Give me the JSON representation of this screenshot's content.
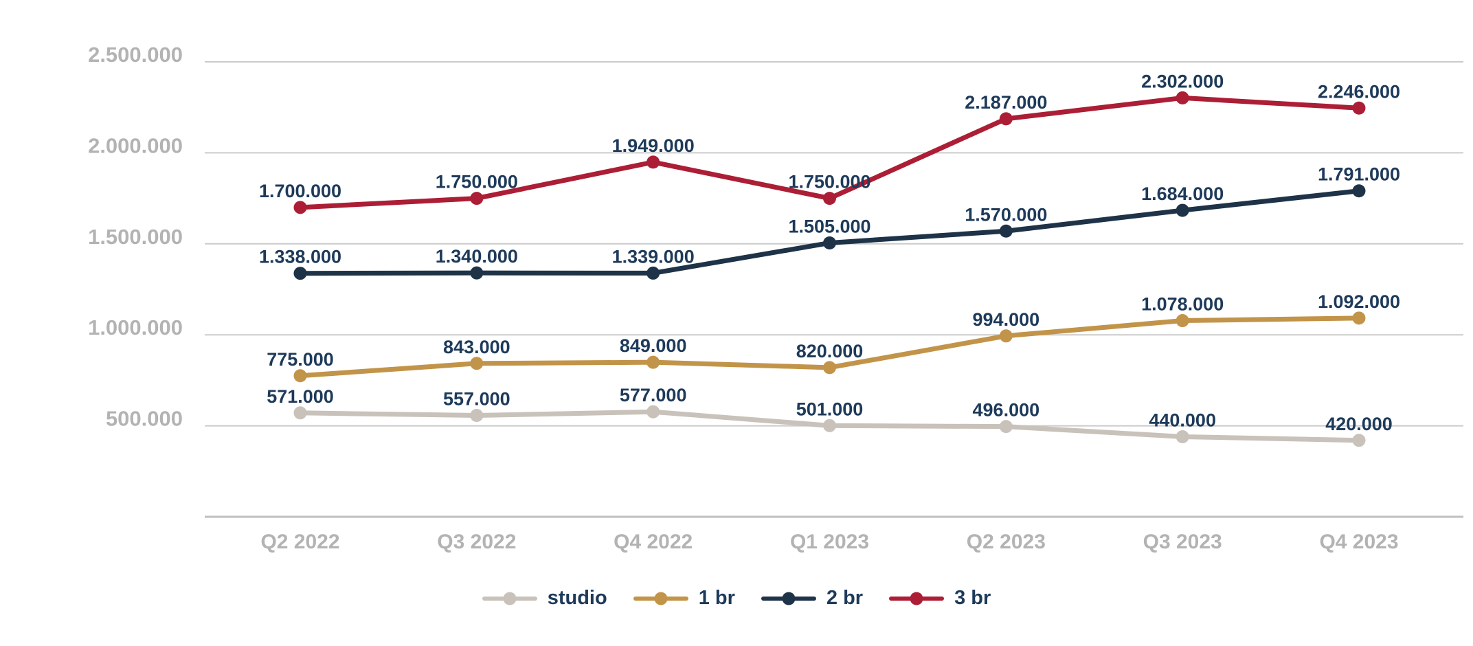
{
  "chart_data": {
    "type": "line",
    "categories": [
      "Q2 2022",
      "Q3 2022",
      "Q4 2022",
      "Q1 2023",
      "Q2 2023",
      "Q3 2023",
      "Q4 2023"
    ],
    "series": [
      {
        "name": "studio",
        "color": "#C8C2BA",
        "values": [
          571000,
          557000,
          577000,
          501000,
          496000,
          440000,
          420000
        ],
        "labels": [
          "571.000",
          "557.000",
          "577.000",
          "501.000",
          "496.000",
          "440.000",
          "420.000"
        ]
      },
      {
        "name": "1 br",
        "color": "#C29449",
        "values": [
          775000,
          843000,
          849000,
          820000,
          994000,
          1078000,
          1092000
        ],
        "labels": [
          "775.000",
          "843.000",
          "849.000",
          "820.000",
          "994.000",
          "1.078.000",
          "1.092.000"
        ]
      },
      {
        "name": "2 br",
        "color": "#1E3348",
        "values": [
          1338000,
          1340000,
          1339000,
          1505000,
          1570000,
          1684000,
          1791000
        ],
        "labels": [
          "1.338.000",
          "1.340.000",
          "1.339.000",
          "1.505.000",
          "1.570.000",
          "1.684.000",
          "1.791.000"
        ]
      },
      {
        "name": "3 br",
        "color": "#AC1E35",
        "values": [
          1700000,
          1750000,
          1949000,
          1750000,
          2187000,
          2302000,
          2246000
        ],
        "labels": [
          "1.700.000",
          "1.750.000",
          "1.949.000",
          "1.750.000",
          "2.187.000",
          "2.302.000",
          "2.246.000"
        ]
      }
    ],
    "yticks": [
      {
        "value": 500000,
        "label": "500.000"
      },
      {
        "value": 1000000,
        "label": "1.000.000"
      },
      {
        "value": 1500000,
        "label": "1.500.000"
      },
      {
        "value": 2000000,
        "label": "2.000.000"
      },
      {
        "value": 2500000,
        "label": "2.500.000"
      }
    ],
    "ylim": [
      0,
      2500000
    ],
    "grid": true,
    "legend_position": "bottom",
    "colors": {
      "background": "#FFFFFF",
      "grid_line": "#CBCBCB",
      "axis_line": "#C0BFBE",
      "axis_tick_text": "#B3B3B3",
      "point_label_text": "#1E3A5A",
      "legend_text": "#1E3A5A"
    }
  }
}
